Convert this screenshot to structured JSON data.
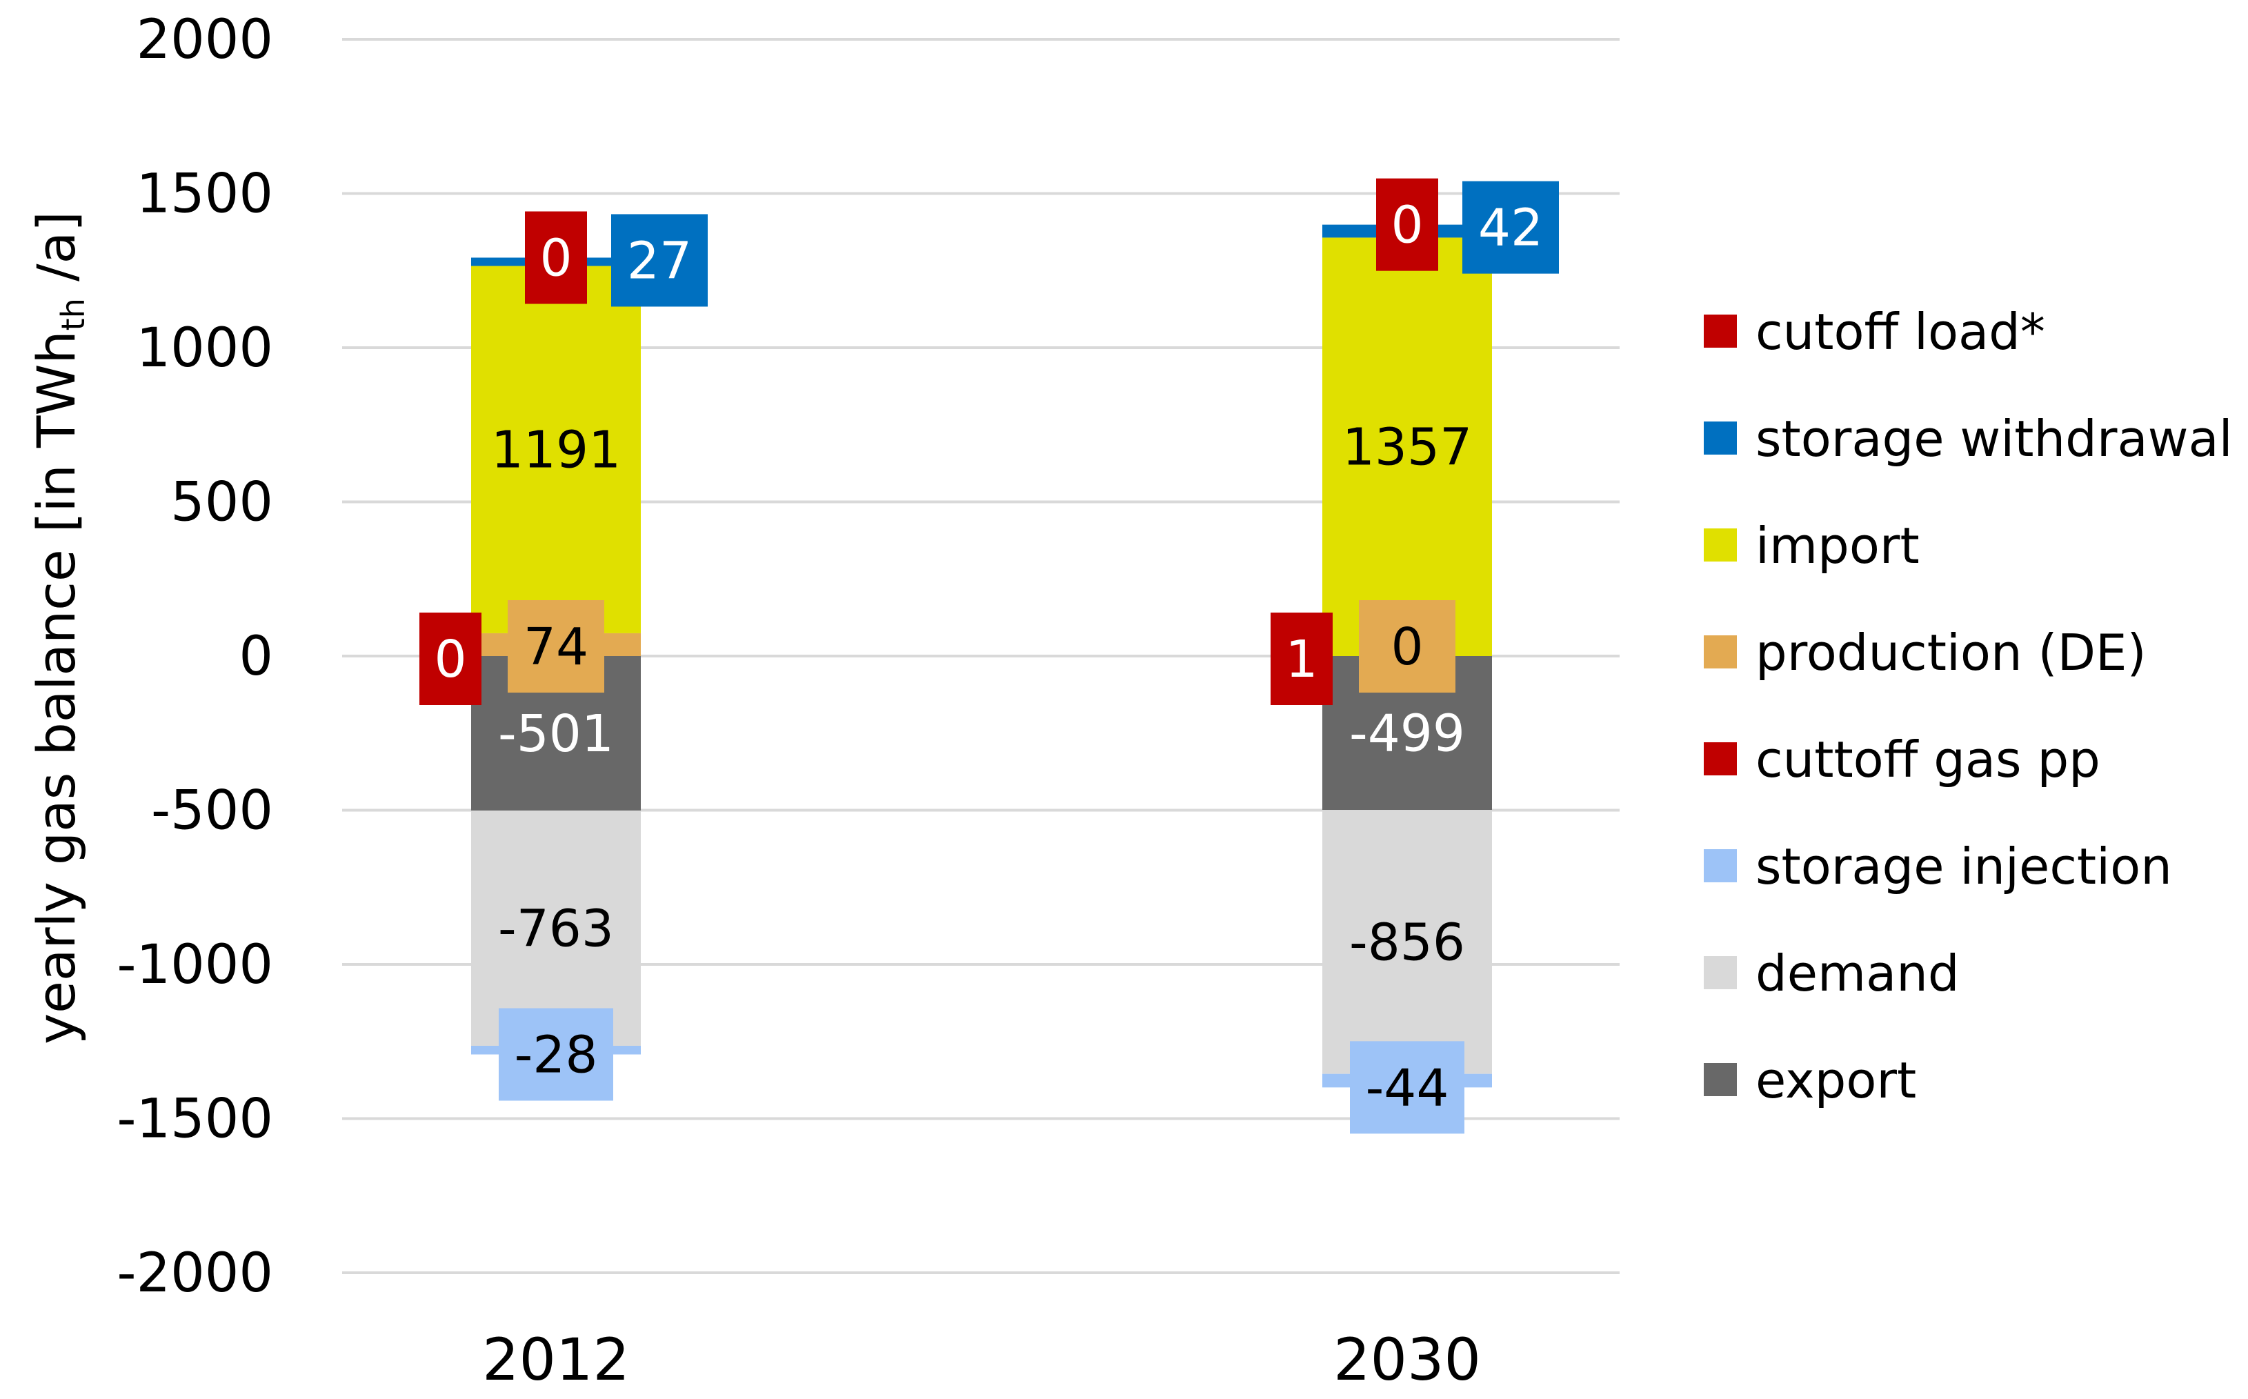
{
  "chart_data": {
    "type": "bar",
    "stacked": true,
    "title": "",
    "ylabel": {
      "main": "yearly gas balance [in TWh",
      "subscript": "th",
      "suffix": " /a]"
    },
    "xlabel": "",
    "categories": [
      "2012",
      "2030"
    ],
    "ylim": [
      -2000,
      2000
    ],
    "yticks": [
      2000,
      1500,
      1000,
      500,
      0,
      -500,
      -1000,
      -1500,
      -2000
    ],
    "ytick_labels": [
      "2000",
      "1500",
      "1000",
      "500",
      "0",
      "-500",
      "-1000",
      "-1500",
      "-2000"
    ],
    "grid": true,
    "legend_position": "right",
    "series": [
      {
        "name": "cutoff load*",
        "color": "#C00000",
        "values": [
          0,
          0
        ],
        "labels": [
          "0",
          "0"
        ]
      },
      {
        "name": "storage withdrawal",
        "color": "#0070C0",
        "values": [
          27,
          42
        ],
        "labels": [
          "27",
          "42"
        ]
      },
      {
        "name": "import",
        "color": "#E0E000",
        "values": [
          1191,
          1357
        ],
        "labels": [
          "1191",
          "1357"
        ]
      },
      {
        "name": "production (DE)",
        "color": "#E3AA52",
        "values": [
          74,
          0
        ],
        "labels": [
          "74",
          "0"
        ]
      },
      {
        "name": "cuttoff gas pp",
        "color": "#C00000",
        "values": [
          0,
          1
        ],
        "labels": [
          "0",
          "1"
        ]
      },
      {
        "name": "storage injection",
        "color": "#9DC3F7",
        "values": [
          -28,
          -44
        ],
        "labels": [
          "-28",
          "-44"
        ]
      },
      {
        "name": "demand",
        "color": "#D9D9D9",
        "values": [
          -763,
          -856
        ],
        "labels": [
          "-763",
          "-856"
        ]
      },
      {
        "name": "export",
        "color": "#686868",
        "values": [
          -501,
          -499
        ],
        "labels": [
          "-501",
          "-499"
        ]
      }
    ]
  }
}
